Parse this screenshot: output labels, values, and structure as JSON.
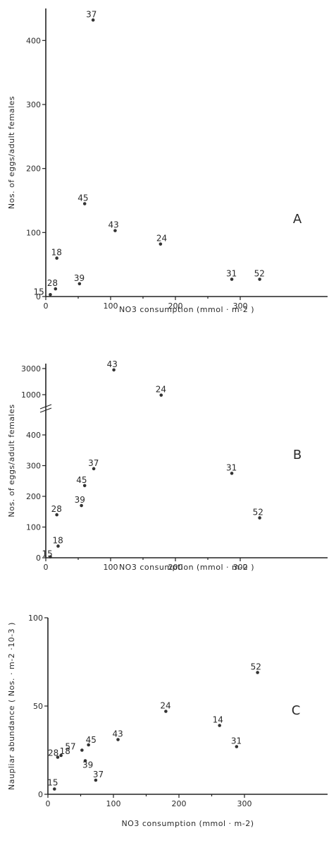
{
  "chart_data": [
    {
      "type": "scatter",
      "panel_label": "A",
      "xlabel": "NO3 consumption  (mmol · m-2 )",
      "ylabel": "Nos. of eggs/adult females",
      "xlim": [
        0,
        340
      ],
      "ylim": [
        0,
        450
      ],
      "xticks": [
        0,
        100,
        200,
        300
      ],
      "yticks": [
        0,
        100,
        200,
        300,
        400
      ],
      "points": [
        {
          "label": "15",
          "x": 7,
          "y": 3
        },
        {
          "label": "28",
          "x": 15,
          "y": 12
        },
        {
          "label": "18",
          "x": 17,
          "y": 60
        },
        {
          "label": "39",
          "x": 52,
          "y": 20
        },
        {
          "label": "45",
          "x": 60,
          "y": 145
        },
        {
          "label": "37",
          "x": 73,
          "y": 432
        },
        {
          "label": "43",
          "x": 107,
          "y": 103
        },
        {
          "label": "24",
          "x": 177,
          "y": 82
        },
        {
          "label": "31",
          "x": 287,
          "y": 27
        },
        {
          "label": "52",
          "x": 330,
          "y": 27
        }
      ]
    },
    {
      "type": "scatter",
      "panel_label": "B",
      "xlabel": "NO3 consumption  (mmol · m-2 )",
      "ylabel": "Nos. of eggs/adult females",
      "xlim": [
        0,
        340
      ],
      "ylim": [
        0,
        500
      ],
      "axis_break": true,
      "xticks": [
        0,
        100,
        200,
        300
      ],
      "yticks": [
        0,
        100,
        200,
        300,
        400,
        1000,
        3000
      ],
      "points": [
        {
          "label": "15",
          "x": 7,
          "y": 3
        },
        {
          "label": "28",
          "x": 17,
          "y": 140
        },
        {
          "label": "18",
          "x": 19,
          "y": 38
        },
        {
          "label": "39",
          "x": 55,
          "y": 170
        },
        {
          "label": "45",
          "x": 60,
          "y": 235
        },
        {
          "label": "37",
          "x": 74,
          "y": 290
        },
        {
          "label": "43",
          "x": 105,
          "y": 2900
        },
        {
          "label": "24",
          "x": 178,
          "y": 980
        },
        {
          "label": "31",
          "x": 287,
          "y": 275
        },
        {
          "label": "52",
          "x": 330,
          "y": 130
        }
      ]
    },
    {
      "type": "scatter",
      "panel_label": "C",
      "xlabel": "NO3 consumption  (mmol · m-2)",
      "ylabel": "Naupliar abundance  ( Nos. · m-2 ·10-3 )",
      "xlim": [
        0,
        340
      ],
      "ylim": [
        0,
        100
      ],
      "xticks": [
        0,
        100,
        200,
        300
      ],
      "yticks": [
        0,
        50,
        100
      ],
      "points": [
        {
          "label": "15",
          "x": 10,
          "y": 3
        },
        {
          "label": "28",
          "x": 15,
          "y": 21
        },
        {
          "label": "18",
          "x": 20,
          "y": 22
        },
        {
          "label": "57",
          "x": 52,
          "y": 25
        },
        {
          "label": "39",
          "x": 57,
          "y": 19
        },
        {
          "label": "45",
          "x": 62,
          "y": 28
        },
        {
          "label": "37",
          "x": 73,
          "y": 8
        },
        {
          "label": "43",
          "x": 107,
          "y": 31
        },
        {
          "label": "24",
          "x": 180,
          "y": 47
        },
        {
          "label": "14",
          "x": 262,
          "y": 39
        },
        {
          "label": "31",
          "x": 288,
          "y": 27
        },
        {
          "label": "52",
          "x": 320,
          "y": 69
        }
      ]
    }
  ]
}
